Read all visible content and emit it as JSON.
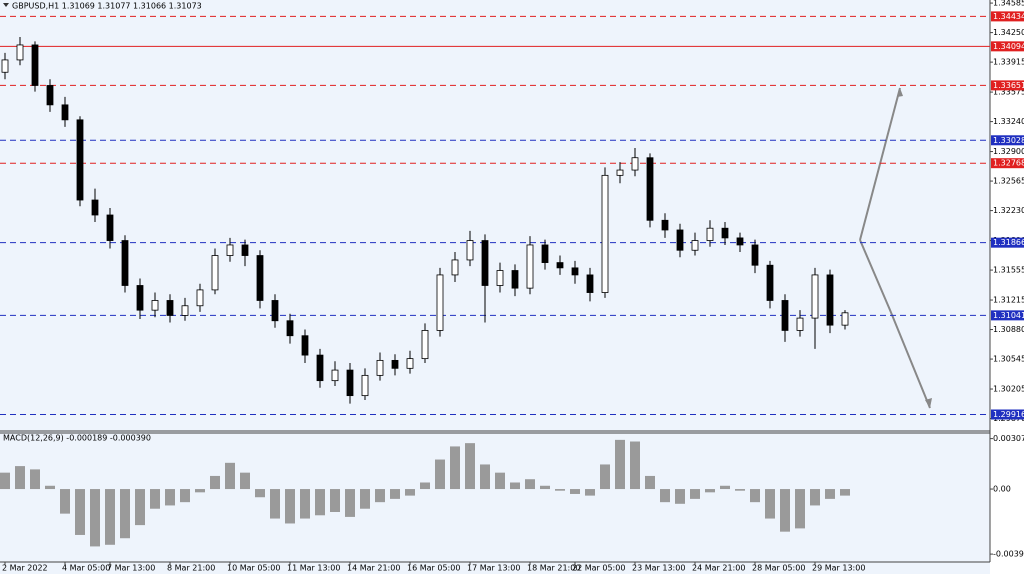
{
  "chart_data": [
    {
      "type": "candlestick",
      "title": "GBPUSD,H1  1.31069 1.31077 1.31066 1.31073",
      "categories": [
        "2 Mar 2022",
        null,
        null,
        null,
        "4 Mar 05:00",
        null,
        null,
        "7 Mar 13:00",
        null,
        null,
        null,
        "8 Mar 21:00",
        null,
        null,
        null,
        "10 Mar 05:00",
        null,
        null,
        null,
        "11 Mar 13:00",
        null,
        null,
        null,
        "14 Mar 21:00",
        null,
        null,
        null,
        "16 Mar 05:00",
        null,
        null,
        null,
        "17 Mar 13:00",
        null,
        null,
        null,
        "18 Mar 21:00",
        null,
        null,
        "22 Mar 05:00",
        null,
        null,
        null,
        "23 Mar 13:00",
        null,
        null,
        null,
        "24 Mar 21:00",
        null,
        null,
        null,
        "28 Mar 05:00",
        null,
        null,
        null,
        "29 Mar 13:00",
        null,
        null
      ],
      "open": [
        1.338,
        1.3394,
        1.3411,
        1.3365,
        1.3343,
        1.3326,
        1.3235,
        1.3218,
        1.3189,
        1.3138,
        1.311,
        1.3121,
        1.3104,
        1.3115,
        1.3133,
        1.3172,
        1.3184,
        1.3172,
        1.3121,
        1.3098,
        1.3081,
        1.3059,
        1.303,
        1.3042,
        1.3013,
        1.3036,
        1.3053,
        1.3044,
        1.3055,
        1.3087,
        1.315,
        1.3167,
        1.3189,
        1.3138,
        1.3155,
        1.3135,
        1.3184,
        1.3164,
        1.3158,
        1.315,
        1.313,
        1.3263,
        1.3269,
        1.3283,
        1.3212,
        1.3201,
        1.3178,
        1.3189,
        1.3203,
        1.3192,
        1.3184,
        1.3161,
        1.3121,
        1.3087,
        1.3101,
        1.315,
        1.3093
      ],
      "high": [
        1.3402,
        1.342,
        1.3415,
        1.3372,
        1.3352,
        1.333,
        1.3248,
        1.3226,
        1.3195,
        1.3146,
        1.313,
        1.3128,
        1.3124,
        1.314,
        1.318,
        1.3192,
        1.319,
        1.3178,
        1.3128,
        1.3106,
        1.3088,
        1.3066,
        1.3052,
        1.305,
        1.3044,
        1.3062,
        1.306,
        1.3064,
        1.3095,
        1.3158,
        1.3176,
        1.32,
        1.3196,
        1.3164,
        1.3162,
        1.3194,
        1.319,
        1.3172,
        1.3166,
        1.3158,
        1.3272,
        1.3278,
        1.3294,
        1.3288,
        1.322,
        1.3208,
        1.3198,
        1.3212,
        1.321,
        1.3198,
        1.319,
        1.3166,
        1.3128,
        1.311,
        1.3158,
        1.3156,
        1.311
      ],
      "low": [
        1.3372,
        1.3388,
        1.3358,
        1.3335,
        1.3318,
        1.3228,
        1.321,
        1.318,
        1.313,
        1.31,
        1.3102,
        1.3096,
        1.3098,
        1.3108,
        1.3128,
        1.3165,
        1.316,
        1.3112,
        1.309,
        1.3072,
        1.305,
        1.3022,
        1.3024,
        1.3004,
        1.3008,
        1.303,
        1.3036,
        1.3038,
        1.305,
        1.308,
        1.3142,
        1.316,
        1.3096,
        1.313,
        1.3126,
        1.3128,
        1.3156,
        1.315,
        1.314,
        1.312,
        1.3124,
        1.3254,
        1.3262,
        1.3204,
        1.3192,
        1.317,
        1.3172,
        1.3182,
        1.3184,
        1.3176,
        1.3152,
        1.3112,
        1.3074,
        1.308,
        1.3066,
        1.3084,
        1.3088
      ],
      "close": [
        1.3394,
        1.3411,
        1.3365,
        1.3343,
        1.3326,
        1.3235,
        1.3218,
        1.3189,
        1.3138,
        1.311,
        1.3121,
        1.3104,
        1.3115,
        1.3133,
        1.3172,
        1.3184,
        1.3172,
        1.3121,
        1.3098,
        1.3081,
        1.3059,
        1.303,
        1.3042,
        1.3013,
        1.3036,
        1.3053,
        1.3044,
        1.3055,
        1.3087,
        1.315,
        1.3167,
        1.3189,
        1.3138,
        1.3155,
        1.3135,
        1.3184,
        1.3164,
        1.3158,
        1.315,
        1.313,
        1.3263,
        1.3269,
        1.3283,
        1.3212,
        1.3201,
        1.3178,
        1.3189,
        1.3203,
        1.3192,
        1.3184,
        1.3161,
        1.3121,
        1.3087,
        1.3101,
        1.315,
        1.3093,
        1.3107
      ],
      "color_up": "#ffffff",
      "color_down": "#000000",
      "ylim": [
        1.2974,
        1.3462
      ],
      "yticks": [
        1.34585,
        {
          "value": 1.3425,
          "label": "1.34250"
        },
        1.33915,
        1.33575,
        {
          "value": 1.3324,
          "label": "1.33240"
        },
        {
          "value": 1.329,
          "label": "1.32900"
        },
        1.32565,
        {
          "value": 1.3223,
          "label": "1.32230"
        },
        {
          "value": 1.3189,
          "label": "1.31890"
        },
        1.31555,
        1.31215,
        {
          "value": 1.3088,
          "label": "1.30880"
        },
        1.30545,
        1.30205,
        {
          "value": 1.2987,
          "label": "1.29870"
        }
      ],
      "levels": [
        {
          "value": 1.34434,
          "color": "#e02020",
          "style": "dashed"
        },
        {
          "value": 1.34094,
          "color": "#e02020",
          "style": "solid"
        },
        {
          "value": 1.33651,
          "color": "#e02020",
          "style": "dashed"
        },
        {
          "value": 1.33028,
          "color": "#2030c0",
          "style": "dashed"
        },
        {
          "value": 1.32768,
          "color": "#e02020",
          "style": "dashed"
        },
        {
          "value": 1.31866,
          "color": "#2030c0",
          "style": "dashed"
        },
        {
          "value": 1.31041,
          "color": "#2030c0",
          "style": "dashed"
        },
        {
          "value": 1.29916,
          "color": "#2030c0",
          "style": "dashed"
        }
      ]
    },
    {
      "type": "bar",
      "title": "MACD(12,26,9) -0.000189 -0.000390",
      "values": [
        0.001,
        0.0014,
        0.0012,
        0.0002,
        -0.0015,
        -0.0028,
        -0.0035,
        -0.0034,
        -0.003,
        -0.0022,
        -0.0012,
        -0.001,
        -0.0008,
        -0.0002,
        0.0008,
        0.0016,
        0.001,
        -0.0005,
        -0.0018,
        -0.0021,
        -0.0018,
        -0.0016,
        -0.0014,
        -0.0017,
        -0.0012,
        -0.0008,
        -0.0006,
        -0.0004,
        0.0004,
        0.0018,
        0.0026,
        0.0028,
        0.0015,
        0.001,
        0.0004,
        0.0006,
        0.0002,
        -0.0001,
        -0.0003,
        -0.0004,
        0.0015,
        0.003,
        0.0029,
        0.0008,
        -0.0008,
        -0.0009,
        -0.0006,
        -0.0002,
        0.0002,
        -0.0001,
        -0.0008,
        -0.0018,
        -0.0026,
        -0.0024,
        -0.001,
        -0.0006,
        -0.0004
      ],
      "color": "#9a9a9a",
      "ylim": [
        -0.00445,
        0.00348
      ],
      "yticks": [
        0.003077,
        {
          "value": 0,
          "label": "0.00"
        },
        -0.003968
      ]
    }
  ]
}
